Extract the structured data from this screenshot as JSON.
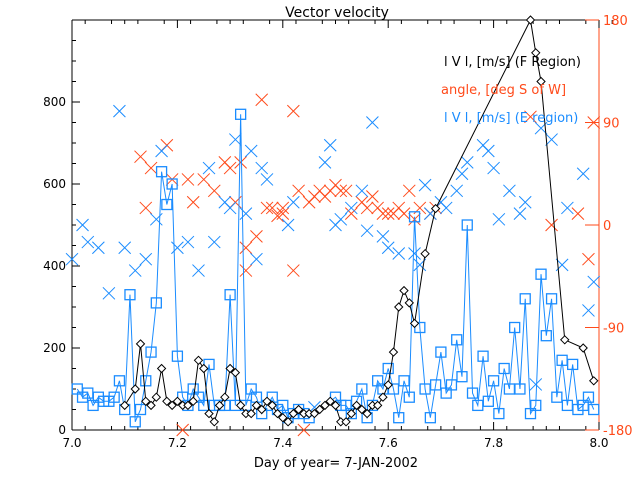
{
  "chart_data": {
    "type": "scatter",
    "title": "Vector velocity",
    "xlabel": "Day of year= 7-JAN-2002",
    "ylabel": "",
    "xlim": [
      7.0,
      8.0
    ],
    "ylim": [
      0,
      1000
    ],
    "y2lim": [
      -180,
      180
    ],
    "xticks": [
      "7.0",
      "7.2",
      "7.4",
      "7.6",
      "7.8",
      "8.0"
    ],
    "xtick_values": [
      7.0,
      7.2,
      7.4,
      7.6,
      7.8,
      8.0
    ],
    "yticks": [
      "0",
      "200",
      "400",
      "600",
      "800"
    ],
    "ytick_values": [
      0,
      200,
      400,
      600,
      800
    ],
    "y2ticks": [
      "-180",
      "-90",
      "0",
      "90",
      "180"
    ],
    "y2tick_values": [
      -180,
      -90,
      0,
      90,
      180
    ],
    "grid": false,
    "legend": [
      {
        "label": "l V l, [m/s] (F Region)",
        "color": "#000000"
      },
      {
        "label": "angle, [deg S of W]",
        "color": "#ff4a1a"
      },
      {
        "label": "l V l, [m/s] (E region)",
        "color": "#1a8cff"
      }
    ],
    "legend_position": "top-right",
    "colors": {
      "axis": "#000000",
      "f_region": "#000000",
      "angle": "#ff4a1a",
      "e_region": "#1a8cff",
      "e_cross": "#1a8cff"
    },
    "series": [
      {
        "name": "F region |V|",
        "style": "line-diamond",
        "x": [
          7.1,
          7.12,
          7.13,
          7.14,
          7.15,
          7.16,
          7.17,
          7.18,
          7.19,
          7.2,
          7.21,
          7.22,
          7.23,
          7.24,
          7.25,
          7.26,
          7.27,
          7.28,
          7.29,
          7.3,
          7.31,
          7.32,
          7.33,
          7.34,
          7.35,
          7.36,
          7.37,
          7.38,
          7.39,
          7.4,
          7.41,
          7.42,
          7.43,
          7.44,
          7.45,
          7.46,
          7.47,
          7.48,
          7.49,
          7.5,
          7.51,
          7.52,
          7.53,
          7.54,
          7.55,
          7.56,
          7.57,
          7.58,
          7.59,
          7.6,
          7.61,
          7.62,
          7.63,
          7.64,
          7.65,
          7.67,
          7.69,
          7.87,
          7.88,
          7.89,
          7.935,
          7.97,
          7.99
        ],
        "y": [
          60,
          100,
          210,
          70,
          60,
          80,
          150,
          70,
          60,
          70,
          60,
          60,
          70,
          170,
          150,
          40,
          20,
          60,
          80,
          150,
          140,
          60,
          40,
          40,
          60,
          50,
          70,
          60,
          40,
          30,
          20,
          40,
          50,
          40,
          40,
          40,
          50,
          60,
          70,
          60,
          20,
          20,
          40,
          60,
          50,
          40,
          60,
          60,
          80,
          110,
          190,
          300,
          340,
          310,
          260,
          430,
          540,
          1000,
          920,
          850,
          220,
          200,
          120
        ]
      },
      {
        "name": "E region |V|",
        "style": "line-square",
        "x": [
          7.01,
          7.02,
          7.03,
          7.04,
          7.05,
          7.06,
          7.07,
          7.08,
          7.09,
          7.1,
          7.11,
          7.12,
          7.13,
          7.14,
          7.15,
          7.16,
          7.17,
          7.18,
          7.19,
          7.2,
          7.21,
          7.22,
          7.23,
          7.24,
          7.25,
          7.26,
          7.27,
          7.28,
          7.29,
          7.3,
          7.31,
          7.32,
          7.33,
          7.34,
          7.35,
          7.36,
          7.37,
          7.38,
          7.39,
          7.4,
          7.41,
          7.42,
          7.43,
          7.44,
          7.45,
          7.5,
          7.51,
          7.52,
          7.53,
          7.54,
          7.55,
          7.56,
          7.57,
          7.58,
          7.59,
          7.6,
          7.61,
          7.62,
          7.63,
          7.64,
          7.65,
          7.66,
          7.67,
          7.68,
          7.69,
          7.7,
          7.71,
          7.72,
          7.73,
          7.74,
          7.75,
          7.76,
          7.77,
          7.78,
          7.79,
          7.8,
          7.81,
          7.82,
          7.83,
          7.84,
          7.85,
          7.86,
          7.87,
          7.88,
          7.89,
          7.9,
          7.91,
          7.92,
          7.93,
          7.94,
          7.95,
          7.96,
          7.97,
          7.98,
          7.99
        ],
        "y": [
          100,
          80,
          90,
          60,
          80,
          70,
          70,
          80,
          120,
          50,
          330,
          20,
          50,
          120,
          190,
          310,
          630,
          550,
          600,
          180,
          80,
          60,
          100,
          80,
          60,
          160,
          60,
          60,
          60,
          330,
          60,
          770,
          60,
          100,
          80,
          40,
          60,
          80,
          50,
          60,
          30,
          40,
          50,
          40,
          30,
          80,
          60,
          60,
          40,
          70,
          100,
          30,
          60,
          120,
          100,
          150,
          100,
          30,
          120,
          80,
          520,
          250,
          100,
          30,
          110,
          190,
          90,
          110,
          220,
          130,
          500,
          90,
          60,
          180,
          70,
          120,
          40,
          150,
          100,
          250,
          100,
          320,
          40,
          60,
          380,
          230,
          320,
          80,
          170,
          60,
          160,
          50,
          60,
          80,
          50
        ]
      },
      {
        "name": "angle (deg S of W)",
        "axis": "right",
        "style": "cross",
        "color": "#ff4a1a",
        "x": [
          7.13,
          7.15,
          7.18,
          7.19,
          7.14,
          7.22,
          7.23,
          7.25,
          7.3,
          7.31,
          7.32,
          7.27,
          7.29,
          7.33,
          7.36,
          7.37,
          7.38,
          7.39,
          7.4,
          7.4,
          7.42,
          7.43,
          7.45,
          7.46,
          7.47,
          7.48,
          7.49,
          7.5,
          7.51,
          7.52,
          7.53,
          7.55,
          7.56,
          7.57,
          7.58,
          7.59,
          7.6,
          7.61,
          7.62,
          7.63,
          7.64,
          7.65,
          7.66,
          7.68,
          7.69,
          7.42,
          7.33,
          7.35,
          7.21,
          7.44,
          7.87,
          7.91,
          7.96,
          7.98,
          7.99
        ],
        "y": [
          60,
          50,
          70,
          40,
          15,
          40,
          20,
          40,
          50,
          20,
          55,
          30,
          55,
          -40,
          110,
          15,
          15,
          8,
          15,
          10,
          -40,
          30,
          20,
          25,
          30,
          25,
          30,
          35,
          30,
          30,
          10,
          20,
          15,
          25,
          15,
          10,
          10,
          10,
          15,
          10,
          30,
          5,
          15,
          10,
          15,
          100,
          -20,
          -10,
          -180,
          -180,
          95,
          0,
          10,
          -30,
          90
        ]
      },
      {
        "name": "E region |V| (angle-scatter)",
        "axis": "right",
        "style": "cross",
        "color": "#1a8cff",
        "x": [
          7.0,
          7.02,
          7.03,
          7.05,
          7.07,
          7.09,
          7.1,
          7.12,
          7.14,
          7.16,
          7.17,
          7.2,
          7.22,
          7.24,
          7.26,
          7.27,
          7.29,
          7.3,
          7.31,
          7.33,
          7.34,
          7.35,
          7.36,
          7.37,
          7.41,
          7.42,
          7.46,
          7.48,
          7.49,
          7.5,
          7.51,
          7.53,
          7.55,
          7.56,
          7.57,
          7.59,
          7.6,
          7.62,
          7.65,
          7.66,
          7.67,
          7.68,
          7.7,
          7.71,
          7.73,
          7.74,
          7.75,
          7.78,
          7.79,
          7.8,
          7.81,
          7.83,
          7.85,
          7.86,
          7.88,
          7.89,
          7.91,
          7.93,
          7.94,
          7.97,
          7.98,
          7.99
        ],
        "y": [
          -30,
          0,
          -15,
          -20,
          -60,
          100,
          -20,
          -40,
          -30,
          5,
          65,
          -20,
          -15,
          -40,
          50,
          -15,
          20,
          15,
          75,
          10,
          65,
          -30,
          50,
          40,
          0,
          20,
          -160,
          55,
          70,
          0,
          5,
          15,
          30,
          -5,
          90,
          -10,
          -20,
          -25,
          -25,
          -35,
          35,
          10,
          20,
          15,
          30,
          45,
          55,
          70,
          65,
          50,
          5,
          30,
          10,
          20,
          -140,
          85,
          75,
          -35,
          15,
          45,
          -75,
          -50
        ]
      }
    ]
  }
}
